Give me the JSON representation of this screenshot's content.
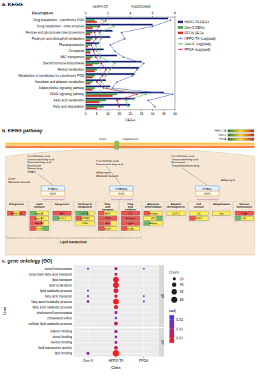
{
  "chart_data": [
    {
      "type": "bar",
      "title": "a. KEGG",
      "orientation": "horizontal",
      "y_label": "Description",
      "x_label": "DEGs",
      "x2_label": "-log10(padj)",
      "categories": [
        "Drug metabolism - cytochrome P450",
        "Drug metabolism - other enzymes",
        "Pentose and glucuronate interconversions",
        "Porphyrin and chlorophyll metabolism",
        "Phototransduction",
        "Ferroptosis",
        "ABC transporters",
        "Steroid hormone biosynthesis",
        "Retinol metabolism",
        "Metabolism of xenobiotics by cytochrome P450",
        "Ascorbate and aldarate metabolism",
        "Adipocytokine signaling pathway",
        "PPAR signaling pathway",
        "Fatty acid metabolism",
        "Fatty acid degradation"
      ],
      "xlim": [
        0,
        40
      ],
      "xticks": [
        0,
        5,
        10,
        15,
        20,
        25,
        30,
        35,
        40
      ],
      "x2lim": [
        0,
        8
      ],
      "x2ticks": [
        0,
        2,
        4,
        6,
        8
      ],
      "annotations": [
        {
          "label": "padj=0.05",
          "value": 1.301
        }
      ],
      "legend": "right",
      "series": [
        {
          "name": "HFPO-TA DEGs",
          "type": "bar",
          "color": "#1c2a7a",
          "values": [
            37,
            30,
            12,
            11,
            6,
            8,
            14,
            25,
            24,
            22,
            9,
            11,
            35,
            22,
            20
          ]
        },
        {
          "name": "Gen-X DEGs",
          "type": "bar",
          "color": "#43a047",
          "values": [
            4,
            6,
            3,
            3,
            2,
            2,
            3,
            6,
            5,
            4,
            3,
            4,
            14,
            9,
            8
          ]
        },
        {
          "name": "PFOA DEGs",
          "type": "bar",
          "color": "#d32f2f",
          "values": [
            5,
            3,
            2,
            2,
            1,
            2,
            2,
            3,
            4,
            3,
            2,
            3,
            12,
            6,
            5
          ]
        },
        {
          "name": "HFPO-TA -Log(padj)",
          "type": "line",
          "axis": "x2",
          "color": "#5c6bc0",
          "marker": "circle",
          "values": [
            7.6,
            6.0,
            3.2,
            3.5,
            2.2,
            2.6,
            3.4,
            5.2,
            4.6,
            4.2,
            2.8,
            2.4,
            7.8,
            5.6,
            6.2
          ]
        },
        {
          "name": "Gen-X -Log(padj)",
          "type": "line",
          "axis": "x2",
          "color": "#66bb6a",
          "marker": "circle",
          "values": [
            1.5,
            2.5,
            1.2,
            1.4,
            0.9,
            1.0,
            1.3,
            2.6,
            2.2,
            1.8,
            1.4,
            1.9,
            5.4,
            3.6,
            3.8
          ]
        },
        {
          "name": "PFOA -Log(padj)",
          "type": "line",
          "axis": "x2",
          "color": "#c2185b",
          "marker": "circle",
          "values": [
            1.8,
            1.2,
            0.8,
            0.9,
            0.5,
            0.7,
            0.9,
            1.4,
            1.8,
            1.5,
            1.0,
            1.6,
            4.6,
            2.8,
            3.0
          ]
        }
      ]
    },
    {
      "type": "dot",
      "title": "c. gene ontology (GO)",
      "x_label": "Class",
      "y_label": "Term",
      "classes": [
        "Gen-X",
        "HFPO-TA",
        "PFOA"
      ],
      "facets": [
        {
          "label": "BP",
          "terms": [
            "sterol homeostasis",
            "long-chain fatty acid transport",
            "lipid transport",
            "lipid localization",
            "lipid catabolic process",
            "fatty acid transport",
            "fatty acid metabolic process",
            "fatty acid catabolic process",
            "cholesterol homeostasis",
            "cholesterol efflux",
            "cellular lipid catabolic process"
          ]
        },
        {
          "label": "MF",
          "terms": [
            "vitamin binding",
            "sterol binding",
            "steroid binding",
            "lipid transporter activity",
            "lipid binding"
          ]
        }
      ],
      "points": [
        {
          "class": "Gen-X",
          "term": "sterol homeostasis",
          "count": 8,
          "padj": 0.03
        },
        {
          "class": "Gen-X",
          "term": "lipid catabolic process",
          "count": 9,
          "padj": 0.028
        },
        {
          "class": "Gen-X",
          "term": "fatty acid transport",
          "count": 10,
          "padj": 0.025
        },
        {
          "class": "Gen-X",
          "term": "fatty acid metabolic process",
          "count": 15,
          "padj": 0.02
        },
        {
          "class": "Gen-X",
          "term": "lipid binding",
          "count": 20,
          "padj": 0.025
        },
        {
          "class": "HFPO-TA",
          "term": "sterol homeostasis",
          "count": 22,
          "padj": 0.018
        },
        {
          "class": "HFPO-TA",
          "term": "long-chain fatty acid transport",
          "count": 20,
          "padj": 0.015
        },
        {
          "class": "HFPO-TA",
          "term": "lipid transport",
          "count": 70,
          "padj": 0.008
        },
        {
          "class": "HFPO-TA",
          "term": "lipid localization",
          "count": 75,
          "padj": 0.008
        },
        {
          "class": "HFPO-TA",
          "term": "lipid catabolic process",
          "count": 50,
          "padj": 0.01
        },
        {
          "class": "HFPO-TA",
          "term": "fatty acid transport",
          "count": 25,
          "padj": 0.012
        },
        {
          "class": "HFPO-TA",
          "term": "fatty acid metabolic process",
          "count": 70,
          "padj": 0.005
        },
        {
          "class": "HFPO-TA",
          "term": "fatty acid catabolic process",
          "count": 35,
          "padj": 0.008
        },
        {
          "class": "HFPO-TA",
          "term": "cholesterol homeostasis",
          "count": 20,
          "padj": 0.02
        },
        {
          "class": "HFPO-TA",
          "term": "cholesterol efflux",
          "count": 12,
          "padj": 0.03
        },
        {
          "class": "HFPO-TA",
          "term": "cellular lipid catabolic process",
          "count": 30,
          "padj": 0.015
        },
        {
          "class": "HFPO-TA",
          "term": "vitamin binding",
          "count": 25,
          "padj": 0.02
        },
        {
          "class": "HFPO-TA",
          "term": "sterol binding",
          "count": 15,
          "padj": 0.025
        },
        {
          "class": "HFPO-TA",
          "term": "steroid binding",
          "count": 20,
          "padj": 0.02
        },
        {
          "class": "HFPO-TA",
          "term": "lipid transporter activity",
          "count": 30,
          "padj": 0.012
        },
        {
          "class": "HFPO-TA",
          "term": "lipid binding",
          "count": 90,
          "padj": 0.005
        },
        {
          "class": "PFOA",
          "term": "sterol homeostasis",
          "count": 6,
          "padj": 0.03
        },
        {
          "class": "PFOA",
          "term": "fatty acid transport",
          "count": 6,
          "padj": 0.03
        },
        {
          "class": "PFOA",
          "term": "fatty acid metabolic process",
          "count": 8,
          "padj": 0.025
        }
      ],
      "size_legend": {
        "title": "Count",
        "ticks": [
          20,
          40,
          60,
          80
        ]
      },
      "color_scale": {
        "title": "padj",
        "range": [
          0.005,
          0.035
        ],
        "ticks": [
          0.01,
          0.02,
          0.03
        ],
        "colors": [
          "#ff1a1a",
          "#3a3aff"
        ]
      },
      "grid": true
    }
  ],
  "diagram": {
    "title": "b. KEGG pathway",
    "key": [
      "HFPO-TA",
      "Gen-X",
      "PFOA"
    ],
    "membrane_labels": [
      "VLDL",
      "Chylomicron"
    ],
    "pathways": [
      {
        "tissues": [
          "Liver",
          "Skeletal muscle"
        ],
        "ligands": [
          "9-cis-Retinoic acid",
          "Unsaturated fatty acid",
          "Saturated fatty acid",
          "Eicosanoid",
          "Fibrate drug",
          "NSAID"
        ],
        "receptor": "PPARα",
        "partner": "RXR"
      },
      {
        "tissues": [
          "Adipocyte",
          "Skeletal muscle"
        ],
        "ligands": [
          "9-cis-Retinoic acid",
          "Unsaturated fatty acid"
        ],
        "receptor": "PPARβ/δ",
        "partner": "RXR"
      },
      {
        "tissues": [
          "Adipocyte"
        ],
        "ligands": [
          "9-cis-Retinoic acid",
          "Unsaturated fatty acid",
          "Eicosanoid",
          "Thiazolidinedione drug"
        ],
        "receptor": "PPARγ",
        "partner": "RXR"
      }
    ],
    "processes": [
      {
        "label": "Ketogenesis",
        "genes": [
          {
            "name": "HMGCS2",
            "colors": [
              "#ef5350",
              "#ffee58",
              "#ef5350"
            ]
          }
        ]
      },
      {
        "label": "Lipid transport",
        "genes": [
          {
            "name": "Apo-AI",
            "colors": [
              "#66bb6a",
              "#ffee58",
              "#ffee58"
            ]
          },
          {
            "name": "Apo-AII",
            "colors": [
              "#ef5350",
              "#ffee58",
              "#ffee58"
            ]
          },
          {
            "name": "Apo-AV",
            "colors": [
              "#ef5350",
              "#ef5350",
              "#ffee58"
            ]
          },
          {
            "name": "PLTP",
            "colors": [
              "#ef5350",
              "#ffee58",
              "#66bb6a"
            ]
          }
        ]
      },
      {
        "label": "Lipogenesis",
        "genes": [
          {
            "name": "ME1",
            "colors": [
              "#ef5350",
              "#ef5350",
              "#ef5350"
            ]
          },
          {
            "name": "SCD-1",
            "colors": [
              "#66bb6a",
              "#ffee58",
              "#ffee58"
            ]
          }
        ]
      },
      {
        "label": "Cholesterol metabolism",
        "genes": [
          {
            "name": "CYP7A1",
            "colors": [
              "#66bb6a",
              "#66bb6a",
              "#ffee58"
            ]
          },
          {
            "name": "CYP8B1",
            "colors": [
              "#ef5350",
              "#ffee58",
              "#ffee58"
            ]
          },
          {
            "name": "LXRα",
            "colors": [
              "#ffee58",
              "#ffee58",
              "#ffee58"
            ]
          }
        ]
      },
      {
        "label": "Fatty acid transport",
        "genes": [
          {
            "name": "FATP",
            "colors": [
              "#ef5350",
              "#ffee58",
              "#ffee58"
            ]
          },
          {
            "name": "CD36",
            "colors": [
              "#ef5350",
              "#ef5350",
              "#ef5350"
            ]
          },
          {
            "name": "Acsl",
            "colors": [
              "#ef5350",
              "#ef5350",
              "#ffee58"
            ]
          },
          {
            "name": "ACBP",
            "colors": [
              "#ef5350",
              "#ffee58",
              "#ffee58"
            ]
          }
        ]
      },
      {
        "label": "Fatty acid oxidation",
        "genes": [
          {
            "name": "CPT1",
            "colors": [
              "#ef5350",
              "#ef5350",
              "#ef5350"
            ]
          },
          {
            "name": "Ehhadh",
            "colors": [
              "#ef5350",
              "#ef5350",
              "#ef5350"
            ]
          },
          {
            "name": "Cyp4a",
            "colors": [
              "#ef5350",
              "#ef5350",
              "#ef5350"
            ]
          },
          {
            "name": "MCAD",
            "colors": [
              "#ef5350",
              "#ffee58",
              "#ffee58"
            ]
          }
        ]
      },
      {
        "label": "Adipocyte differentiation",
        "genes": [
          {
            "name": "Perilipin",
            "colors": [
              "#ef5350",
              "#ffee58",
              "#ffee58"
            ]
          },
          {
            "name": "aP2",
            "colors": [
              "#ffee58",
              "#ffee58",
              "#66bb6a"
            ]
          },
          {
            "name": "Adipoq",
            "colors": [
              "#66bb6a",
              "#ffee58",
              "#ffee58"
            ]
          }
        ]
      },
      {
        "label": "Adaptive thermogenesis",
        "genes": [
          {
            "name": "UCP-1",
            "colors": [
              "#ffee58",
              "#ffee58",
              "#ffee58"
            ]
          }
        ]
      },
      {
        "label": "Cell survival",
        "genes": [
          {
            "name": "ILK",
            "colors": [
              "#ffee58",
              "#ffee58",
              "#ffee58"
            ]
          },
          {
            "name": "PDK1",
            "colors": [
              "#ef5350",
              "#ffee58",
              "#ffee58"
            ]
          }
        ]
      },
      {
        "label": "Ubiquitination",
        "genes": [
          {
            "name": "Ubc",
            "colors": [
              "#ffee58",
              "#ffee58",
              "#ffee58"
            ]
          }
        ]
      },
      {
        "label": "Glucose homeostasis",
        "genes": [
          {
            "name": "PGAR",
            "colors": [
              "#ef5350",
              "#ef5350",
              "#ef5350"
            ]
          },
          {
            "name": "GK",
            "colors": [
              "#66bb6a",
              "#ffee58",
              "#ffee58"
            ]
          }
        ]
      }
    ],
    "group_label": "Lipid metabolism"
  }
}
